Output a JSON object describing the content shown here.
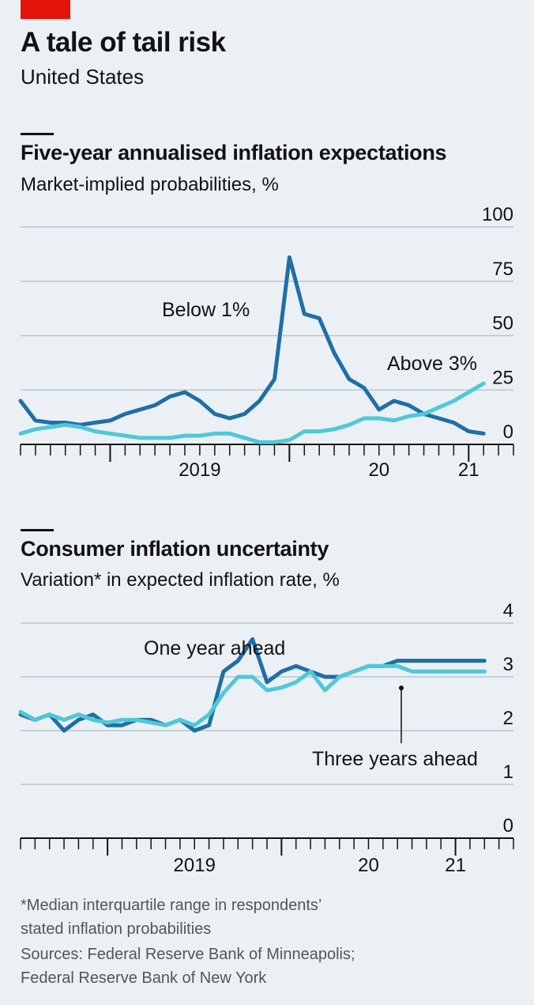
{
  "header": {
    "title": "A tale of tail risk",
    "subtitle": "United States"
  },
  "colors": {
    "dark_series": "#1f6fa6",
    "light_series": "#4fc8d8",
    "accent": "#e3120b"
  },
  "chart_data": [
    {
      "type": "line",
      "title": "Five-year annualised inflation expectations",
      "subtitle": "Market-implied probabilities, %",
      "ylim": [
        0,
        100
      ],
      "yticks": [
        0,
        25,
        50,
        75,
        100
      ],
      "xlim": [
        "2018-07",
        "2021-04"
      ],
      "xtick_labels": [
        {
          "x": "2019-07",
          "label": "2019"
        },
        {
          "x": "2020-07",
          "label": "20"
        },
        {
          "x": "2021-01",
          "label": "21"
        }
      ],
      "grid": true,
      "series": [
        {
          "name": "Below 1%",
          "color": "dark",
          "x": [
            "2018-07",
            "2018-08",
            "2018-09",
            "2018-10",
            "2018-11",
            "2018-12",
            "2019-01",
            "2019-02",
            "2019-03",
            "2019-04",
            "2019-05",
            "2019-06",
            "2019-07",
            "2019-08",
            "2019-09",
            "2019-10",
            "2019-11",
            "2019-12",
            "2020-01",
            "2020-02",
            "2020-03",
            "2020-04",
            "2020-05",
            "2020-06",
            "2020-07",
            "2020-08",
            "2020-09",
            "2020-10",
            "2020-11",
            "2020-12",
            "2021-01",
            "2021-02"
          ],
          "values": [
            20,
            11,
            10,
            10,
            9,
            10,
            11,
            14,
            16,
            18,
            22,
            24,
            20,
            14,
            12,
            14,
            20,
            30,
            86,
            60,
            58,
            42,
            30,
            26,
            16,
            20,
            18,
            14,
            12,
            10,
            6,
            5
          ]
        },
        {
          "name": "Above 3%",
          "color": "light",
          "x": [
            "2018-07",
            "2018-08",
            "2018-09",
            "2018-10",
            "2018-11",
            "2018-12",
            "2019-01",
            "2019-02",
            "2019-03",
            "2019-04",
            "2019-05",
            "2019-06",
            "2019-07",
            "2019-08",
            "2019-09",
            "2019-10",
            "2019-11",
            "2019-12",
            "2020-01",
            "2020-02",
            "2020-03",
            "2020-04",
            "2020-05",
            "2020-06",
            "2020-07",
            "2020-08",
            "2020-09",
            "2020-10",
            "2020-11",
            "2020-12",
            "2021-01",
            "2021-02"
          ],
          "values": [
            5,
            7,
            8,
            9,
            8,
            6,
            5,
            4,
            3,
            3,
            3,
            4,
            4,
            5,
            5,
            3,
            1,
            1,
            2,
            6,
            6,
            7,
            9,
            12,
            12,
            11,
            13,
            14,
            17,
            20,
            24,
            28
          ]
        }
      ]
    },
    {
      "type": "line",
      "title": "Consumer inflation uncertainty",
      "subtitle": "Variation* in expected inflation rate, %",
      "ylim": [
        0,
        4
      ],
      "yticks": [
        0,
        1,
        2,
        3,
        4
      ],
      "xlim": [
        "2018-07",
        "2021-05"
      ],
      "xtick_labels": [
        {
          "x": "2019-07",
          "label": "2019"
        },
        {
          "x": "2020-07",
          "label": "20"
        },
        {
          "x": "2021-01",
          "label": "21"
        }
      ],
      "grid": true,
      "series": [
        {
          "name": "One year ahead",
          "color": "dark",
          "x": [
            "2018-07",
            "2018-08",
            "2018-09",
            "2018-10",
            "2018-11",
            "2018-12",
            "2019-01",
            "2019-02",
            "2019-03",
            "2019-04",
            "2019-05",
            "2019-06",
            "2019-07",
            "2019-08",
            "2019-09",
            "2019-10",
            "2019-11",
            "2019-12",
            "2020-01",
            "2020-02",
            "2020-03",
            "2020-04",
            "2020-05",
            "2020-06",
            "2020-07",
            "2020-08",
            "2020-09",
            "2020-10",
            "2020-11",
            "2020-12",
            "2021-01",
            "2021-02",
            "2021-03"
          ],
          "values": [
            2.3,
            2.2,
            2.3,
            2.0,
            2.2,
            2.3,
            2.1,
            2.1,
            2.2,
            2.2,
            2.1,
            2.2,
            2.0,
            2.1,
            3.1,
            3.3,
            3.7,
            2.9,
            3.1,
            3.2,
            3.1,
            3.0,
            3.0,
            3.1,
            3.2,
            3.2,
            3.3,
            3.3,
            3.3,
            3.3,
            3.3,
            3.3,
            3.3
          ]
        },
        {
          "name": "Three years ahead",
          "color": "light",
          "x": [
            "2018-07",
            "2018-08",
            "2018-09",
            "2018-10",
            "2018-11",
            "2018-12",
            "2019-01",
            "2019-02",
            "2019-03",
            "2019-04",
            "2019-05",
            "2019-06",
            "2019-07",
            "2019-08",
            "2019-09",
            "2019-10",
            "2019-11",
            "2019-12",
            "2020-01",
            "2020-02",
            "2020-03",
            "2020-04",
            "2020-05",
            "2020-06",
            "2020-07",
            "2020-08",
            "2020-09",
            "2020-10",
            "2020-11",
            "2020-12",
            "2021-01",
            "2021-02",
            "2021-03"
          ],
          "values": [
            2.35,
            2.2,
            2.3,
            2.2,
            2.3,
            2.2,
            2.15,
            2.2,
            2.2,
            2.15,
            2.1,
            2.2,
            2.1,
            2.3,
            2.7,
            3.0,
            3.0,
            2.75,
            2.8,
            2.9,
            3.1,
            2.75,
            3.0,
            3.1,
            3.2,
            3.2,
            3.2,
            3.1,
            3.1,
            3.1,
            3.1,
            3.1,
            3.1
          ]
        }
      ]
    }
  ],
  "footer": {
    "note_line1": "*Median interquartile range in respondents’",
    "note_line2": "stated inflation probabilities",
    "sources_line1": "Sources: Federal Reserve Bank of Minneapolis;",
    "sources_line2": "Federal Reserve Bank of New York"
  }
}
